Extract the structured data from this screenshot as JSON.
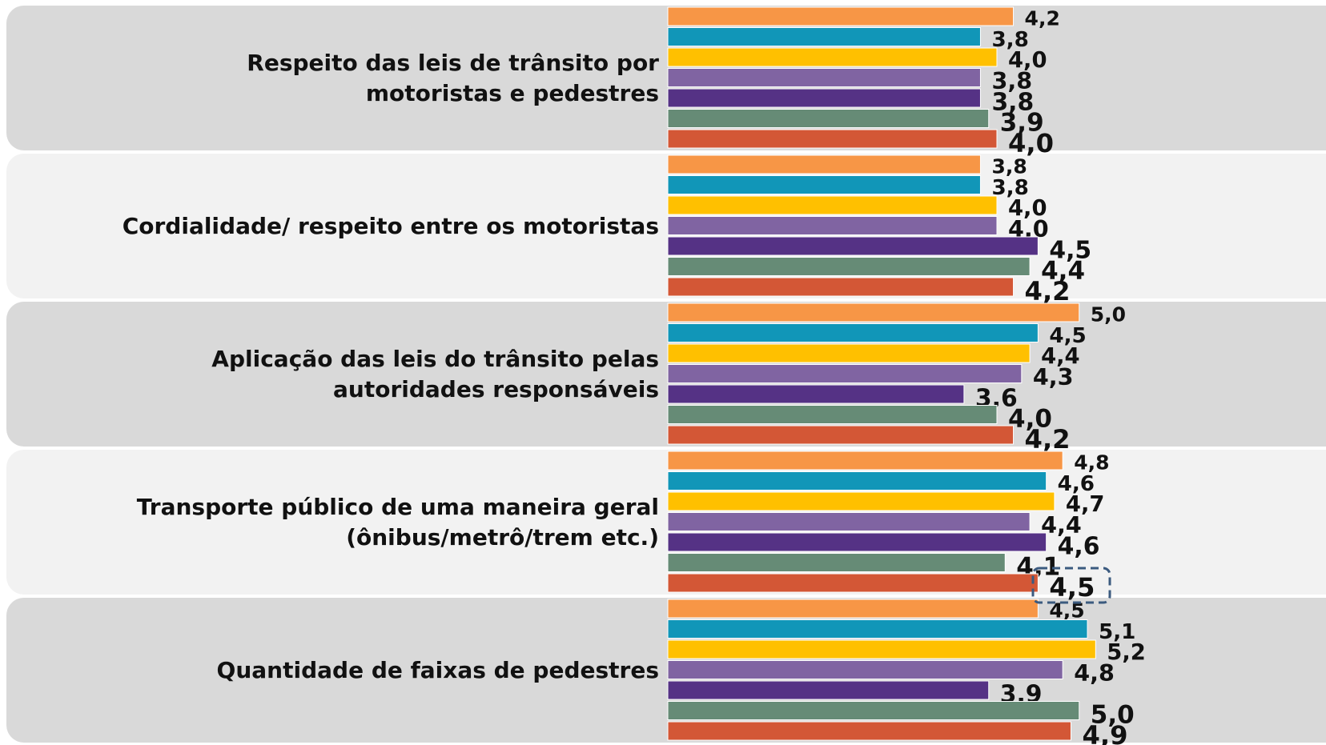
{
  "chart_data": {
    "type": "bar",
    "orientation": "horizontal",
    "categories": [
      "Respeito das leis de trânsito por\nmotoristas e pedestres",
      "Cordialidade/ respeito entre os motoristas",
      "Aplicação das leis do trânsito pelas\nautoridades responsáveis",
      "Transporte público de uma maneira geral\n(ônibus/metrô/trem etc.)",
      "Quantidade de faixas de pedestres"
    ],
    "xlim": [
      0,
      8
    ],
    "series": [
      {
        "color": "#f79646",
        "values": [
          4.2,
          3.8,
          5.0,
          4.8,
          4.5
        ],
        "value_labels": [
          "4,2",
          "3,8",
          "5,0",
          "4,8",
          "4,5"
        ]
      },
      {
        "color": "#1196b8",
        "values": [
          3.8,
          3.8,
          4.5,
          4.6,
          5.1
        ],
        "value_labels": [
          "3,8",
          "3,8",
          "4,5",
          "4,6",
          "5,1"
        ]
      },
      {
        "color": "#ffc000",
        "values": [
          4.0,
          4.0,
          4.4,
          4.7,
          5.2
        ],
        "value_labels": [
          "4,0",
          "4,0",
          "4,4",
          "4,7",
          "5,2"
        ]
      },
      {
        "color": "#8064a2",
        "values": [
          3.8,
          4.0,
          4.3,
          4.4,
          4.8
        ],
        "value_labels": [
          "3,8",
          "4,0",
          "4,3",
          "4,4",
          "4,8"
        ]
      },
      {
        "color": "#553285",
        "values": [
          3.8,
          4.5,
          3.6,
          4.6,
          3.9
        ],
        "value_labels": [
          "3,8",
          "4,5",
          "3,6",
          "4,6",
          "3,9"
        ]
      },
      {
        "color": "#668b76",
        "values": [
          3.9,
          4.4,
          4.0,
          4.1,
          5.0
        ],
        "value_labels": [
          "3,9",
          "4,4",
          "4,0",
          "4,1",
          "5,0"
        ]
      },
      {
        "color": "#d35736",
        "values": [
          4.0,
          4.2,
          4.2,
          4.5,
          4.9
        ],
        "value_labels": [
          "4,0",
          "4,2",
          "4,2",
          "4,5",
          "4,9"
        ]
      }
    ]
  }
}
